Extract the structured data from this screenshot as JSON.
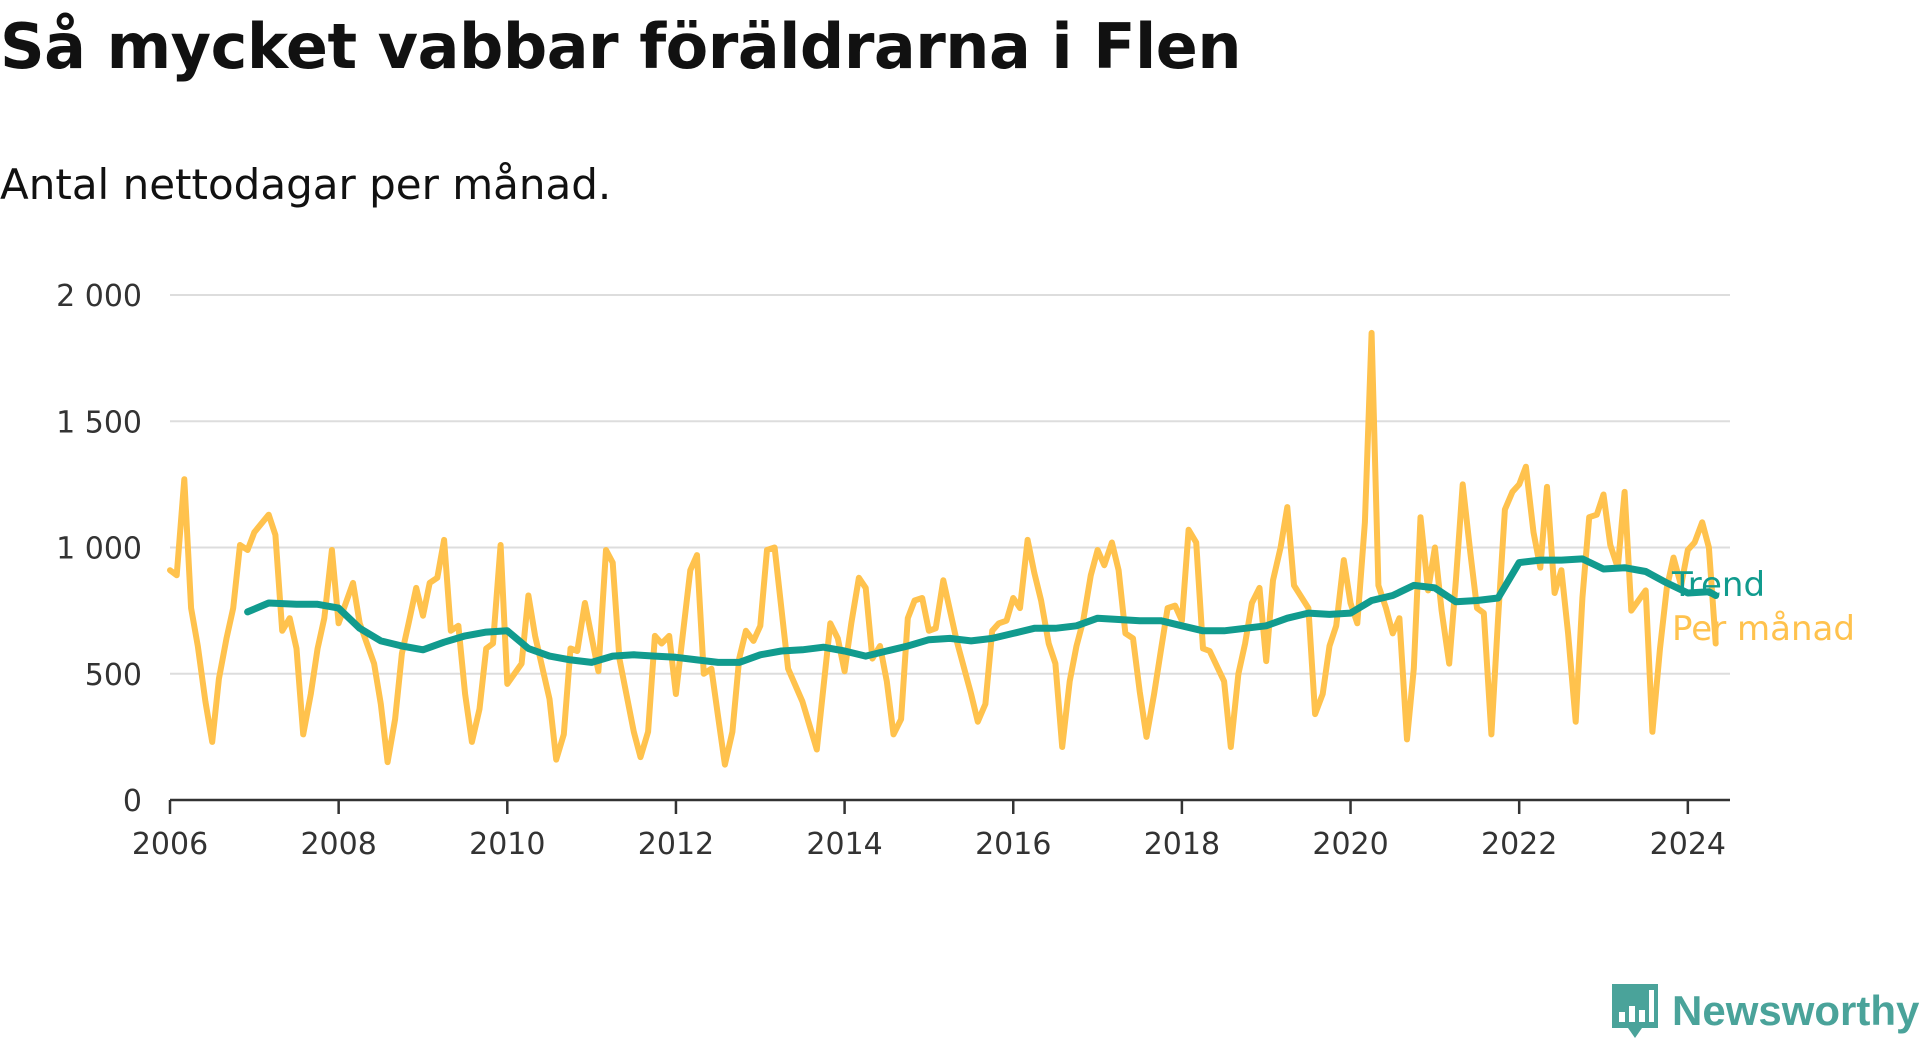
{
  "title": "Så mycket vabbar föräldrarna i Flen",
  "subtitle": "Antal nettodagar per månad.",
  "logo": {
    "text": "Newsworthy",
    "icon": "bar-chart-speech-bubble-icon",
    "color": "#4aa39a"
  },
  "chart_data": {
    "type": "line",
    "ylim": [
      0,
      2000
    ],
    "yticks": [
      0,
      500,
      1000,
      1500,
      2000
    ],
    "ytick_labels": [
      "0",
      "500",
      "1 000",
      "1 500",
      "2 000"
    ],
    "xlim": [
      2006,
      2024.5
    ],
    "xticks": [
      2006,
      2008,
      2010,
      2012,
      2014,
      2016,
      2018,
      2020,
      2022,
      2024
    ],
    "xtick_labels": [
      "2006",
      "2008",
      "2010",
      "2012",
      "2014",
      "2016",
      "2018",
      "2020",
      "2022",
      "2024"
    ],
    "grid": true,
    "legend_placement": "right end of lines",
    "series": [
      {
        "name": "Trend",
        "color": "#119b8e",
        "x": [
          2006.92,
          2007.17,
          2007.5,
          2007.75,
          2008.0,
          2008.25,
          2008.5,
          2008.75,
          2009.0,
          2009.25,
          2009.5,
          2009.75,
          2010.0,
          2010.25,
          2010.5,
          2010.75,
          2011.0,
          2011.25,
          2011.5,
          2011.75,
          2012.0,
          2012.25,
          2012.5,
          2012.75,
          2013.0,
          2013.25,
          2013.5,
          2013.75,
          2014.0,
          2014.25,
          2014.5,
          2014.75,
          2015.0,
          2015.25,
          2015.5,
          2015.75,
          2016.0,
          2016.25,
          2016.5,
          2016.75,
          2017.0,
          2017.25,
          2017.5,
          2017.75,
          2018.0,
          2018.25,
          2018.5,
          2018.75,
          2019.0,
          2019.25,
          2019.5,
          2019.75,
          2020.0,
          2020.25,
          2020.5,
          2020.75,
          2021.0,
          2021.25,
          2021.5,
          2021.75,
          2022.0,
          2022.25,
          2022.5,
          2022.75,
          2023.0,
          2023.25,
          2023.5,
          2023.75,
          2024.0,
          2024.25,
          2024.33
        ],
        "values": [
          745,
          780,
          775,
          775,
          760,
          680,
          630,
          610,
          595,
          625,
          650,
          665,
          670,
          600,
          570,
          555,
          545,
          570,
          575,
          570,
          565,
          555,
          545,
          545,
          575,
          590,
          595,
          605,
          590,
          570,
          590,
          610,
          635,
          640,
          630,
          640,
          660,
          680,
          680,
          690,
          720,
          715,
          710,
          710,
          690,
          670,
          670,
          680,
          690,
          720,
          740,
          735,
          740,
          790,
          810,
          850,
          840,
          785,
          790,
          800,
          940,
          950,
          950,
          955,
          915,
          920,
          905,
          860,
          820,
          825,
          810
        ]
      },
      {
        "name": "Per månad",
        "color": "#ffc24d",
        "x": [
          2006.0,
          2006.08,
          2006.17,
          2006.25,
          2006.33,
          2006.42,
          2006.5,
          2006.58,
          2006.67,
          2006.75,
          2006.83,
          2006.92,
          2007.0,
          2007.17,
          2007.25,
          2007.33,
          2007.42,
          2007.5,
          2007.58,
          2007.67,
          2007.75,
          2007.83,
          2007.92,
          2008.0,
          2008.17,
          2008.25,
          2008.42,
          2008.5,
          2008.58,
          2008.67,
          2008.75,
          2008.83,
          2008.92,
          2009.0,
          2009.08,
          2009.17,
          2009.25,
          2009.33,
          2009.42,
          2009.5,
          2009.58,
          2009.67,
          2009.75,
          2009.83,
          2009.92,
          2010.0,
          2010.17,
          2010.25,
          2010.33,
          2010.5,
          2010.58,
          2010.67,
          2010.75,
          2010.83,
          2010.92,
          2011.08,
          2011.17,
          2011.25,
          2011.33,
          2011.5,
          2011.58,
          2011.67,
          2011.75,
          2011.83,
          2011.92,
          2012.0,
          2012.17,
          2012.25,
          2012.33,
          2012.42,
          2012.5,
          2012.58,
          2012.67,
          2012.75,
          2012.83,
          2012.92,
          2013.0,
          2013.08,
          2013.17,
          2013.33,
          2013.5,
          2013.67,
          2013.83,
          2013.92,
          2014.0,
          2014.08,
          2014.17,
          2014.25,
          2014.33,
          2014.42,
          2014.5,
          2014.58,
          2014.67,
          2014.75,
          2014.83,
          2014.92,
          2015.0,
          2015.08,
          2015.17,
          2015.33,
          2015.5,
          2015.58,
          2015.67,
          2015.75,
          2015.83,
          2015.92,
          2016.0,
          2016.08,
          2016.17,
          2016.25,
          2016.33,
          2016.42,
          2016.5,
          2016.58,
          2016.67,
          2016.75,
          2016.83,
          2016.92,
          2017.0,
          2017.08,
          2017.17,
          2017.25,
          2017.33,
          2017.42,
          2017.5,
          2017.58,
          2017.67,
          2017.75,
          2017.83,
          2017.92,
          2018.0,
          2018.08,
          2018.17,
          2018.25,
          2018.33,
          2018.5,
          2018.58,
          2018.67,
          2018.75,
          2018.83,
          2018.92,
          2019.0,
          2019.08,
          2019.17,
          2019.25,
          2019.33,
          2019.5,
          2019.58,
          2019.67,
          2019.75,
          2019.83,
          2019.92,
          2020.0,
          2020.08,
          2020.17,
          2020.25,
          2020.33,
          2020.42,
          2020.5,
          2020.58,
          2020.67,
          2020.75,
          2020.83,
          2020.92,
          2021.0,
          2021.08,
          2021.17,
          2021.25,
          2021.33,
          2021.42,
          2021.5,
          2021.58,
          2021.67,
          2021.75,
          2021.83,
          2021.92,
          2022.0,
          2022.08,
          2022.17,
          2022.25,
          2022.33,
          2022.42,
          2022.5,
          2022.58,
          2022.67,
          2022.75,
          2022.83,
          2022.92,
          2023.0,
          2023.08,
          2023.17,
          2023.25,
          2023.33,
          2023.5,
          2023.58,
          2023.67,
          2023.75,
          2023.83,
          2023.92,
          2024.0,
          2024.08,
          2024.17,
          2024.25,
          2024.33
        ],
        "values": [
          910,
          890,
          1270,
          760,
          610,
          390,
          230,
          480,
          640,
          760,
          1010,
          990,
          1060,
          1130,
          1050,
          670,
          720,
          600,
          260,
          420,
          600,
          720,
          990,
          700,
          860,
          700,
          540,
          380,
          150,
          320,
          580,
          700,
          840,
          730,
          860,
          880,
          1030,
          670,
          690,
          420,
          230,
          360,
          600,
          620,
          1010,
          460,
          540,
          810,
          650,
          400,
          160,
          260,
          600,
          590,
          780,
          510,
          990,
          940,
          560,
          270,
          170,
          270,
          650,
          620,
          650,
          420,
          910,
          970,
          500,
          520,
          330,
          140,
          270,
          560,
          670,
          630,
          690,
          990,
          1000,
          520,
          390,
          200,
          700,
          640,
          510,
          700,
          880,
          840,
          560,
          610,
          470,
          260,
          320,
          720,
          790,
          800,
          670,
          680,
          870,
          630,
          420,
          310,
          380,
          670,
          700,
          710,
          800,
          760,
          1030,
          900,
          790,
          620,
          540,
          210,
          470,
          610,
          710,
          890,
          990,
          930,
          1020,
          910,
          660,
          640,
          430,
          250,
          420,
          590,
          760,
          770,
          710,
          1070,
          1020,
          600,
          590,
          470,
          210,
          500,
          620,
          780,
          840,
          550,
          870,
          1000,
          1160,
          850,
          760,
          340,
          420,
          610,
          690,
          950,
          780,
          700,
          1100,
          1850,
          850,
          760,
          660,
          720,
          240,
          520,
          1120,
          830,
          1000,
          750,
          540,
          870,
          1250,
          980,
          760,
          740,
          260,
          720,
          1150,
          1220,
          1250,
          1320,
          1060,
          920,
          1240,
          820,
          910,
          660,
          310,
          800,
          1120,
          1130,
          1210,
          1010,
          920,
          1220,
          750,
          830,
          270,
          600,
          840,
          960,
          850,
          990,
          1020,
          1100,
          1000,
          620
        ]
      }
    ]
  }
}
